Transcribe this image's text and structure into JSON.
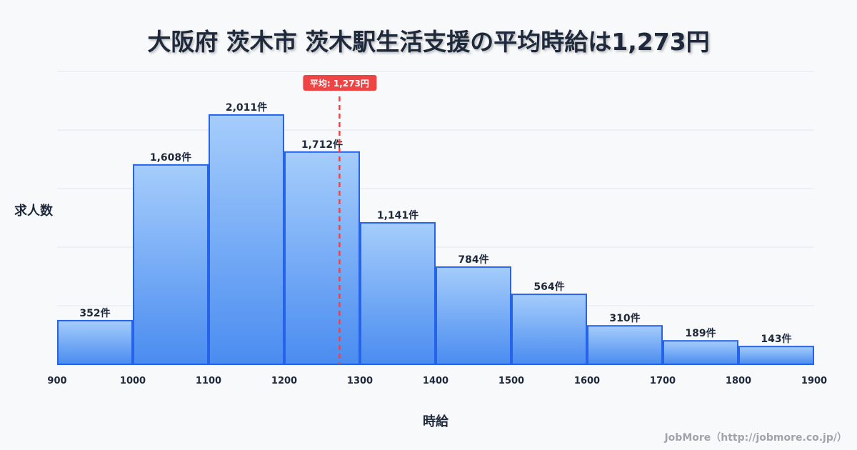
{
  "chart_data": {
    "type": "bar",
    "title": "大阪府 茨木市 茨木駅生活支援の平均時給は1,273円",
    "xlabel": "時給",
    "ylabel": "求人数",
    "bin_edges": [
      900,
      1000,
      1100,
      1200,
      1300,
      1400,
      1500,
      1600,
      1700,
      1800,
      1900
    ],
    "tick_labels": [
      "900",
      "1000",
      "1100",
      "1200",
      "1300",
      "1400",
      "1500",
      "1600",
      "1700",
      "1800",
      "1900"
    ],
    "values": [
      352,
      1608,
      2011,
      1712,
      1141,
      784,
      564,
      310,
      189,
      143
    ],
    "data_labels": [
      "352件",
      "1,608件",
      "2,011件",
      "1,712件",
      "1,141件",
      "784件",
      "564件",
      "310件",
      "189件",
      "143件"
    ],
    "xlim": [
      900,
      1900
    ],
    "ylim": [
      0,
      2362
    ],
    "grid": true,
    "mean": 1273,
    "mean_label": "平均: 1,273円",
    "colors": {
      "bar_top": "#a5cdfb",
      "bar_bottom": "#4a8cf0",
      "bar_stroke": "#2563eb",
      "mean": "#ef4444",
      "grid": "#e2e5ea"
    }
  },
  "credit": "JobMore（http://jobmore.co.jp/）"
}
